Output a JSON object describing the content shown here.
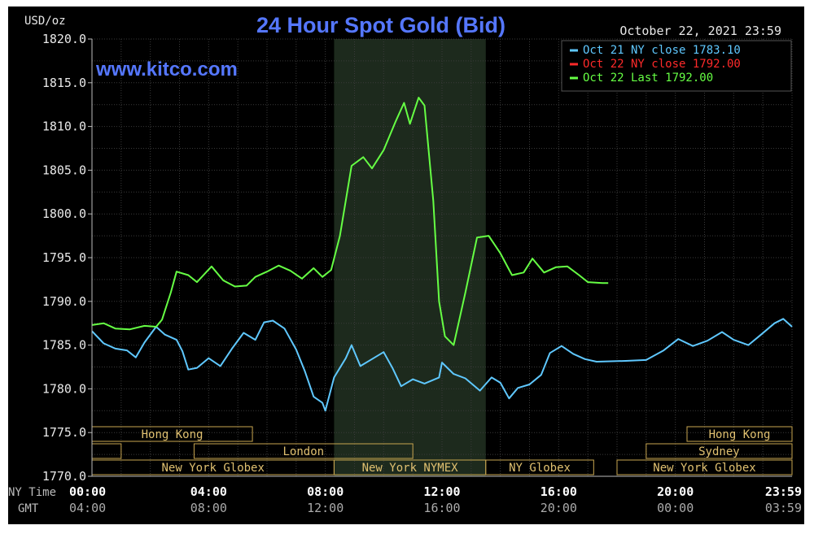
{
  "chart_data": {
    "type": "line",
    "title": "24 Hour Spot Gold (Bid)",
    "ylabel": "USD/oz",
    "watermark": "www.kitco.com",
    "timestamp": "October 22, 2021 23:59",
    "ylim": [
      1770,
      1820
    ],
    "xlim_hours": [
      0,
      24
    ],
    "grid": true,
    "legend_position": "top-right",
    "y_ticks": [
      "1770.0",
      "1775.0",
      "1780.0",
      "1785.0",
      "1790.0",
      "1795.0",
      "1800.0",
      "1805.0",
      "1810.0",
      "1815.0",
      "1820.0"
    ],
    "x_axis_rows": [
      {
        "label": "NY Time",
        "ticks": [
          {
            "h": 0,
            "t": "00:00"
          },
          {
            "h": 4,
            "t": "04:00"
          },
          {
            "h": 8,
            "t": "08:00"
          },
          {
            "h": 12,
            "t": "12:00"
          },
          {
            "h": 16,
            "t": "16:00"
          },
          {
            "h": 20,
            "t": "20:00"
          },
          {
            "h": 24,
            "t": "23:59"
          }
        ]
      },
      {
        "label": "GMT",
        "ticks": [
          {
            "h": 0,
            "t": "04:00"
          },
          {
            "h": 4,
            "t": "08:00"
          },
          {
            "h": 8,
            "t": "12:00"
          },
          {
            "h": 12,
            "t": "16:00"
          },
          {
            "h": 16,
            "t": "20:00"
          },
          {
            "h": 20,
            "t": "00:00"
          },
          {
            "h": 24,
            "t": "03:59"
          }
        ]
      }
    ],
    "highlight_hours": [
      8.3,
      13.5
    ],
    "sessions": [
      {
        "row": 0,
        "start": 0,
        "end": 5.5,
        "label": "Hong Kong"
      },
      {
        "row": 0,
        "start": 20.4,
        "end": 24,
        "label": "Hong Kong"
      },
      {
        "row": 1,
        "start": 0,
        "end": 1,
        "label": ""
      },
      {
        "row": 1,
        "start": 3.5,
        "end": 11,
        "label": "London"
      },
      {
        "row": 1,
        "start": 19,
        "end": 24,
        "label": "Sydney"
      },
      {
        "row": 2,
        "start": 0,
        "end": 8.3,
        "label": "New York Globex"
      },
      {
        "row": 2,
        "start": 8.3,
        "end": 13.5,
        "label": "New York NYMEX"
      },
      {
        "row": 2,
        "start": 13.5,
        "end": 17.2,
        "label": "NY Globex"
      },
      {
        "row": 2,
        "start": 18,
        "end": 24,
        "label": "New York Globex"
      }
    ],
    "legend": [
      {
        "text": "Oct 21 NY close 1783.10",
        "color": "#5fc8ff"
      },
      {
        "text": "Oct 22 NY close 1792.00",
        "color": "#ff2a2a"
      },
      {
        "text": "Oct 22 Last 1792.00",
        "color": "#66ff44"
      }
    ],
    "series": [
      {
        "color": "#5fc8ff",
        "points": [
          [
            0,
            1786.6
          ],
          [
            0.4,
            1785.2
          ],
          [
            0.8,
            1784.6
          ],
          [
            1.2,
            1784.4
          ],
          [
            1.5,
            1783.6
          ],
          [
            1.8,
            1785.3
          ],
          [
            2.2,
            1787.1
          ],
          [
            2.5,
            1786.2
          ],
          [
            2.9,
            1785.6
          ],
          [
            3.1,
            1784.3
          ],
          [
            3.3,
            1782.2
          ],
          [
            3.6,
            1782.4
          ],
          [
            4.0,
            1783.5
          ],
          [
            4.4,
            1782.6
          ],
          [
            4.8,
            1784.6
          ],
          [
            5.2,
            1786.4
          ],
          [
            5.6,
            1785.6
          ],
          [
            5.9,
            1787.6
          ],
          [
            6.2,
            1787.8
          ],
          [
            6.6,
            1786.9
          ],
          [
            7.0,
            1784.5
          ],
          [
            7.3,
            1782.0
          ],
          [
            7.6,
            1779.1
          ],
          [
            7.9,
            1778.4
          ],
          [
            8.0,
            1777.5
          ],
          [
            8.3,
            1781.3
          ],
          [
            8.7,
            1783.5
          ],
          [
            8.9,
            1785.0
          ],
          [
            9.2,
            1782.6
          ],
          [
            9.6,
            1783.4
          ],
          [
            10.0,
            1784.2
          ],
          [
            10.3,
            1782.4
          ],
          [
            10.6,
            1780.3
          ],
          [
            11.0,
            1781.1
          ],
          [
            11.4,
            1780.6
          ],
          [
            11.9,
            1781.3
          ],
          [
            12.0,
            1783.0
          ],
          [
            12.4,
            1781.7
          ],
          [
            12.8,
            1781.2
          ],
          [
            13.3,
            1779.8
          ],
          [
            13.7,
            1781.3
          ],
          [
            14.0,
            1780.7
          ],
          [
            14.3,
            1778.9
          ],
          [
            14.6,
            1780.1
          ],
          [
            15.0,
            1780.5
          ],
          [
            15.4,
            1781.6
          ],
          [
            15.7,
            1784.1
          ],
          [
            16.1,
            1784.9
          ],
          [
            16.5,
            1784.0
          ],
          [
            16.9,
            1783.4
          ],
          [
            17.3,
            1783.1
          ],
          [
            18.3,
            1783.2
          ],
          [
            19.0,
            1783.3
          ],
          [
            19.6,
            1784.4
          ],
          [
            20.1,
            1785.7
          ],
          [
            20.6,
            1784.9
          ],
          [
            21.1,
            1785.5
          ],
          [
            21.6,
            1786.5
          ],
          [
            22.0,
            1785.6
          ],
          [
            22.5,
            1785.0
          ],
          [
            22.9,
            1786.1
          ],
          [
            23.4,
            1787.5
          ],
          [
            23.7,
            1788.0
          ],
          [
            24.0,
            1787.1
          ]
        ]
      },
      {
        "color": "#66ff44",
        "points": [
          [
            0,
            1787.3
          ],
          [
            0.4,
            1787.5
          ],
          [
            0.8,
            1786.9
          ],
          [
            1.3,
            1786.8
          ],
          [
            1.8,
            1787.2
          ],
          [
            2.2,
            1787.1
          ],
          [
            2.4,
            1787.9
          ],
          [
            2.7,
            1791.0
          ],
          [
            2.9,
            1793.4
          ],
          [
            3.3,
            1793.0
          ],
          [
            3.6,
            1792.2
          ],
          [
            4.1,
            1794.0
          ],
          [
            4.5,
            1792.4
          ],
          [
            4.9,
            1791.7
          ],
          [
            5.3,
            1791.8
          ],
          [
            5.6,
            1792.8
          ],
          [
            6.0,
            1793.4
          ],
          [
            6.4,
            1794.1
          ],
          [
            6.8,
            1793.5
          ],
          [
            7.2,
            1792.6
          ],
          [
            7.6,
            1793.8
          ],
          [
            7.9,
            1792.8
          ],
          [
            8.2,
            1793.6
          ],
          [
            8.5,
            1797.5
          ],
          [
            8.9,
            1805.5
          ],
          [
            9.3,
            1806.5
          ],
          [
            9.6,
            1805.2
          ],
          [
            10.0,
            1807.3
          ],
          [
            10.4,
            1810.5
          ],
          [
            10.7,
            1812.7
          ],
          [
            10.9,
            1810.3
          ],
          [
            11.2,
            1813.3
          ],
          [
            11.4,
            1812.4
          ],
          [
            11.7,
            1801.5
          ],
          [
            11.9,
            1790.0
          ],
          [
            12.1,
            1786.0
          ],
          [
            12.4,
            1785.0
          ],
          [
            12.8,
            1791.0
          ],
          [
            13.2,
            1797.3
          ],
          [
            13.6,
            1797.5
          ],
          [
            14.0,
            1795.5
          ],
          [
            14.4,
            1793.0
          ],
          [
            14.8,
            1793.3
          ],
          [
            15.1,
            1794.9
          ],
          [
            15.5,
            1793.3
          ],
          [
            15.9,
            1793.9
          ],
          [
            16.3,
            1794.0
          ],
          [
            16.7,
            1793.0
          ],
          [
            17.0,
            1792.2
          ],
          [
            17.5,
            1792.1
          ],
          [
            17.7,
            1792.1
          ]
        ]
      }
    ]
  }
}
